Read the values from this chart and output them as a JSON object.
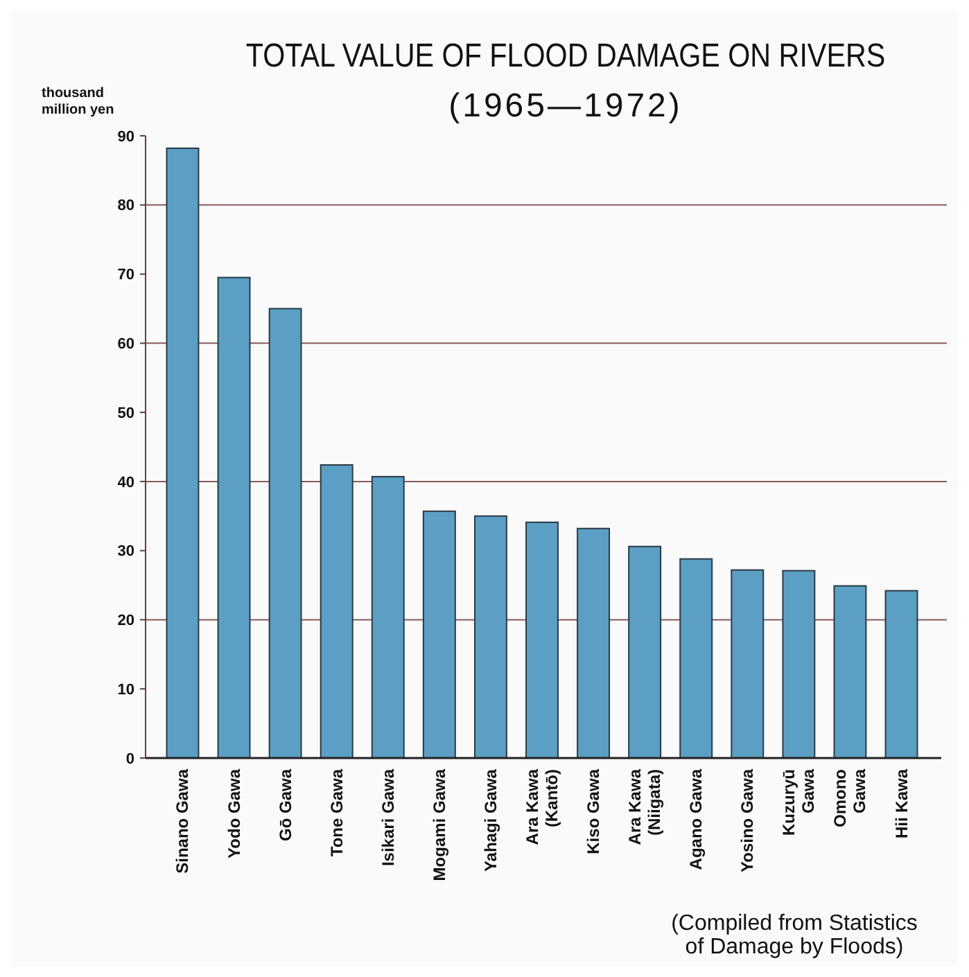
{
  "chart_data": {
    "type": "bar",
    "title": "TOTAL VALUE OF FLOOD DAMAGE ON RIVERS",
    "subtitle": "(1965—1972)",
    "ylabel": "thousand\nmillion yen",
    "categories": [
      "Sinano Gawa",
      "Yodo Gawa",
      "Gō Gawa",
      "Tone Gawa",
      "Isikari Gawa",
      "Mogami Gawa",
      "Yahagi Gawa",
      "Ara Kawa\n(Kantō)",
      "Kiso Gawa",
      "Ara Kawa\n(Niigata)",
      "Agano Gawa",
      "Yosino Gawa",
      "Kuzuryū\nGawa",
      "Omono\nGawa",
      "Hii Kawa"
    ],
    "values": [
      88.2,
      69.5,
      65.0,
      42.4,
      40.7,
      35.7,
      35.0,
      34.1,
      33.2,
      30.6,
      28.8,
      27.2,
      27.1,
      24.9,
      24.2
    ],
    "color": "#5b9fc4",
    "ylim": [
      0,
      90
    ],
    "yticks": [
      0,
      10,
      20,
      30,
      40,
      50,
      60,
      70,
      80,
      90
    ],
    "grid": "y",
    "annotations": [
      "(Compiled from Statistics\nof Damage by Floods)"
    ]
  }
}
